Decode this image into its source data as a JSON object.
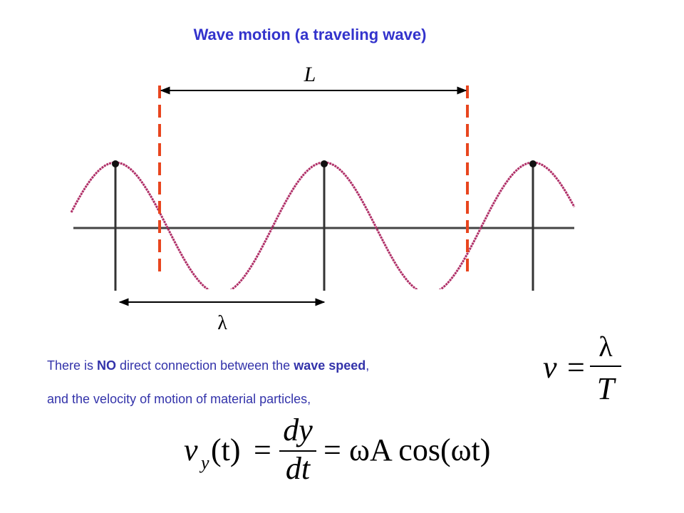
{
  "title": "Wave motion (a traveling wave)",
  "diagram": {
    "length_label": "L",
    "wavelength_label": "λ"
  },
  "text": {
    "line1": [
      "There is ",
      "NO",
      " direct connection between the ",
      "wave speed",
      ","
    ],
    "line2": "and the velocity of motion of material particles,"
  },
  "equations": {
    "wave_speed": {
      "lhs": "v",
      "equals": "=",
      "numerator": "λ",
      "denominator": "T"
    },
    "particle_velocity": {
      "lhs": "v",
      "subscript": "y",
      "argument": "(t)",
      "equals_1": "=",
      "numerator": "dy",
      "denominator": "dt",
      "equals_2": "=",
      "rhs": "ωA cos(ωt)"
    }
  }
}
